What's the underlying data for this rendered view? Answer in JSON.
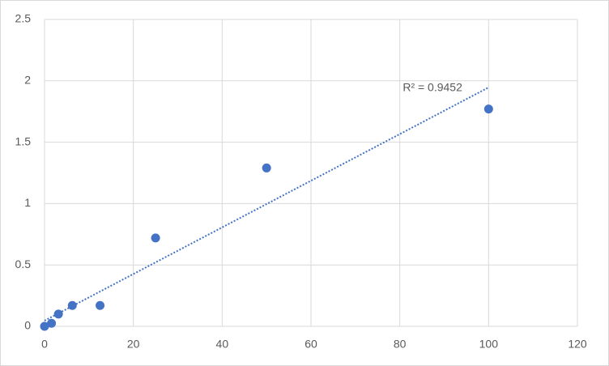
{
  "chart_data": {
    "type": "scatter",
    "x": [
      0,
      1.5625,
      3.125,
      6.25,
      12.5,
      25,
      50,
      100
    ],
    "values": [
      0,
      0.025,
      0.1,
      0.17,
      0.17,
      0.72,
      1.29,
      1.77
    ],
    "color": "#4472c4",
    "xlim": [
      0,
      120
    ],
    "xticks": [
      0,
      20,
      40,
      60,
      80,
      100,
      120
    ],
    "ylim": [
      0,
      2.5
    ],
    "yticks": [
      0,
      0.5,
      1,
      1.5,
      2,
      2.5
    ],
    "grid": true,
    "trendline": {
      "x": [
        0,
        100
      ],
      "y": [
        0.046,
        1.946
      ],
      "label": "R² = 0.9452"
    }
  }
}
